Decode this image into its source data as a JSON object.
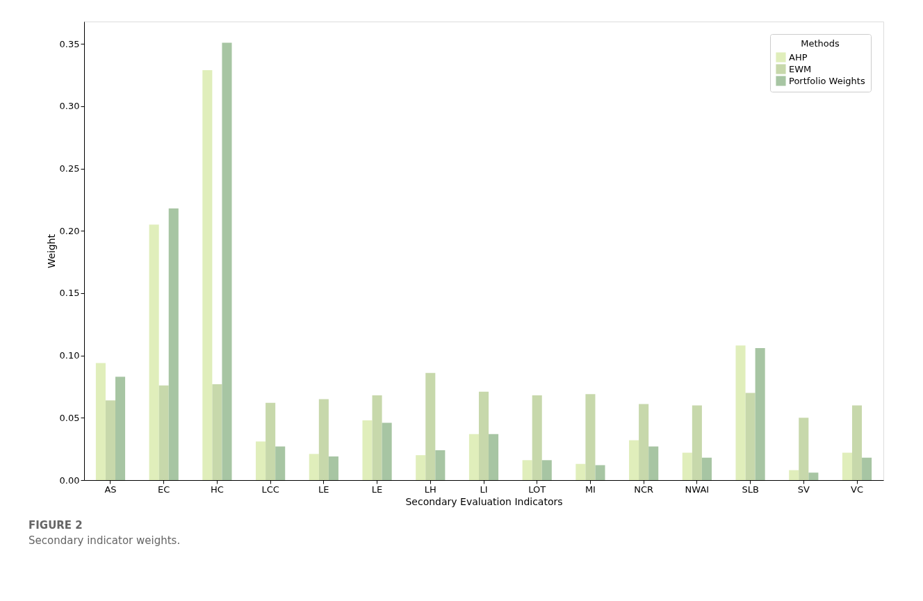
{
  "chart_data": {
    "type": "bar",
    "xlabel": "Secondary Evaluation Indicators",
    "ylabel": "Weight",
    "legend_title": "Methods",
    "legend": "top right",
    "grid": false,
    "categories": [
      "AS",
      "EC",
      "HC",
      "LCC",
      "LE",
      "LE",
      "LH",
      "LI",
      "LOT",
      "MI",
      "NCR",
      "NWAI",
      "SLB",
      "SV",
      "VC"
    ],
    "ylim": [
      0,
      0.368
    ],
    "yticks": [
      {
        "value": 0,
        "label": "0.00"
      },
      {
        "value": 0.05,
        "label": "0.05"
      },
      {
        "value": 0.1,
        "label": "0.10"
      },
      {
        "value": 0.15,
        "label": "0.15"
      },
      {
        "value": 0.2,
        "label": "0.20"
      },
      {
        "value": 0.25,
        "label": "0.25"
      },
      {
        "value": 0.3,
        "label": "0.30"
      },
      {
        "value": 0.35,
        "label": "0.35"
      }
    ],
    "series": [
      {
        "name": "AHP",
        "color": "#e0eebb",
        "values": [
          0.094,
          0.205,
          0.329,
          0.031,
          0.021,
          0.048,
          0.02,
          0.037,
          0.016,
          0.013,
          0.032,
          0.022,
          0.108,
          0.008,
          0.022
        ]
      },
      {
        "name": "EWM",
        "color": "#c7d8ab",
        "values": [
          0.064,
          0.076,
          0.077,
          0.062,
          0.065,
          0.068,
          0.086,
          0.071,
          0.068,
          0.069,
          0.061,
          0.06,
          0.07,
          0.05,
          0.06
        ]
      },
      {
        "name": "Portfolio Weights",
        "color": "#a7c5a3",
        "values": [
          0.083,
          0.218,
          0.351,
          0.027,
          0.019,
          0.046,
          0.024,
          0.037,
          0.016,
          0.012,
          0.027,
          0.018,
          0.106,
          0.006,
          0.018
        ]
      }
    ],
    "annotations": [
      "FIGURE 2",
      "Secondary indicator weights."
    ]
  }
}
